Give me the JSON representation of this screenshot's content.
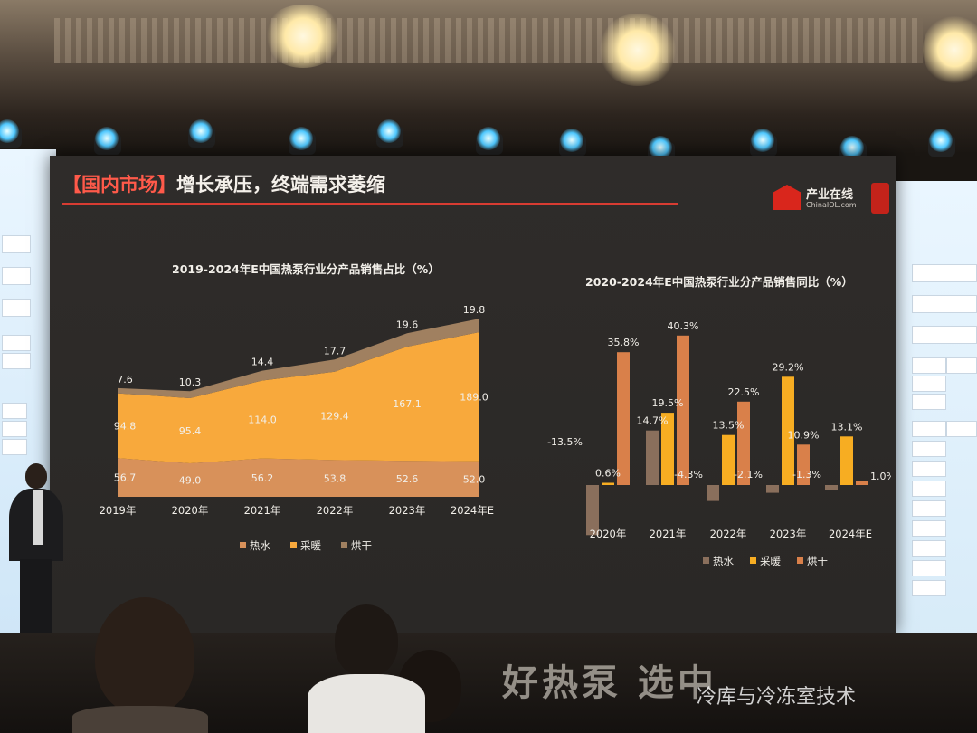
{
  "slide": {
    "title_prefix": "【国内市场】",
    "title_main": "增长承压，终端需求萎缩",
    "logo_name": "产业在线",
    "logo_sub": "ChinaIOL.com"
  },
  "stage": {
    "floor_text": "好热泵 选中",
    "watermark": "冷库与冷冻室技术"
  },
  "chart_data": [
    {
      "type": "area",
      "stacked": true,
      "title": "2019-2024年E中国热泵行业分产品销售占比（%）",
      "categories": [
        "2019年",
        "2020年",
        "2021年",
        "2022年",
        "2023年",
        "2024年E"
      ],
      "series": [
        {
          "name": "热水",
          "values": [
            56.7,
            49.0,
            56.2,
            53.8,
            52.6,
            52.0
          ]
        },
        {
          "name": "采暖",
          "values": [
            94.8,
            95.4,
            114.0,
            129.4,
            167.1,
            189.0
          ]
        },
        {
          "name": "烘干",
          "values": [
            7.6,
            10.3,
            14.4,
            17.7,
            19.6,
            19.8
          ]
        }
      ],
      "colors": [
        "#d8915a",
        "#f8a93c",
        "#a08060"
      ],
      "legend_position": "bottom"
    },
    {
      "type": "bar",
      "title": "2020-2024年E中国热泵行业分产品销售同比（%）",
      "categories": [
        "2020年",
        "2021年",
        "2022年",
        "2023年",
        "2024年E"
      ],
      "series": [
        {
          "name": "热水",
          "values": [
            -13.5,
            14.7,
            -4.3,
            -2.1,
            -1.3
          ]
        },
        {
          "name": "采暖",
          "values": [
            0.6,
            19.5,
            13.5,
            29.2,
            13.1
          ]
        },
        {
          "name": "烘干",
          "values": [
            35.8,
            40.3,
            22.5,
            10.9,
            1.0
          ]
        }
      ],
      "value_labels": [
        [
          "-13.5%",
          "0.6%",
          "35.8%"
        ],
        [
          "14.7%",
          "19.5%",
          "40.3%"
        ],
        [
          "-4.3%",
          "13.5%",
          "22.5%"
        ],
        [
          "-2.1%",
          "29.2%",
          "10.9%"
        ],
        [
          "-1.3%",
          "13.1%",
          "1.0%"
        ]
      ],
      "colors": [
        "#8a6f5c",
        "#f7ad22",
        "#d9804a"
      ],
      "legend_position": "bottom"
    }
  ]
}
